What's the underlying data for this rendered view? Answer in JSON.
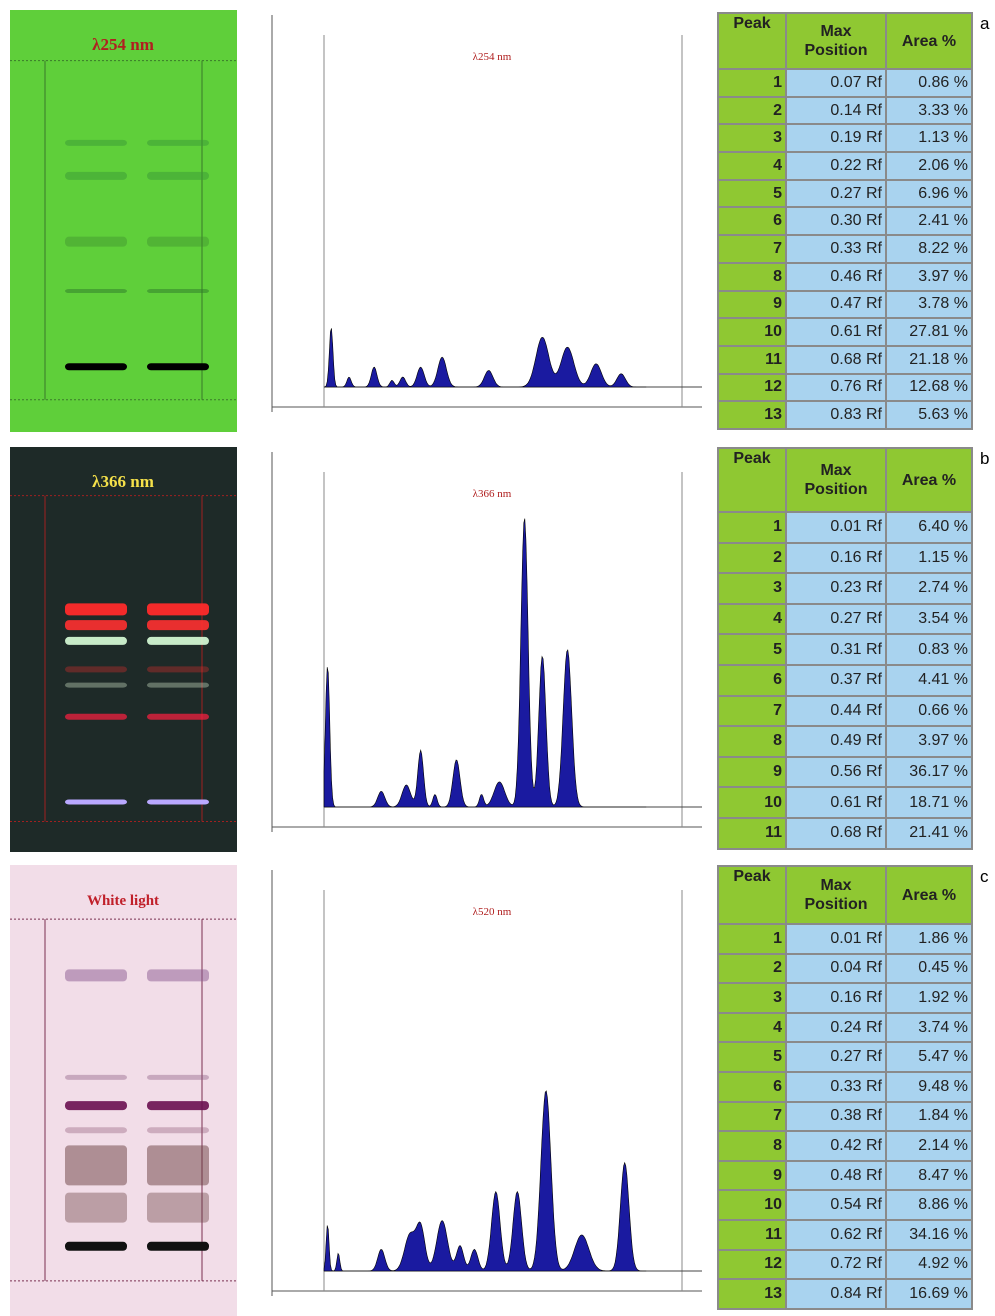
{
  "panels": [
    {
      "label": "a",
      "plate_title": "λ254 nm",
      "chart_title": "λ254 nm",
      "table": {
        "header": [
          "Peak",
          "Max Position",
          "Area %"
        ],
        "rows": [
          [
            "1",
            "0.07 Rf",
            "0.86 %"
          ],
          [
            "2",
            "0.14 Rf",
            "3.33 %"
          ],
          [
            "3",
            "0.19 Rf",
            "1.13 %"
          ],
          [
            "4",
            "0.22 Rf",
            "2.06 %"
          ],
          [
            "5",
            "0.27 Rf",
            "6.96 %"
          ],
          [
            "6",
            "0.30 Rf",
            "2.41 %"
          ],
          [
            "7",
            "0.33 Rf",
            "8.22 %"
          ],
          [
            "8",
            "0.46 Rf",
            "3.97 %"
          ],
          [
            "9",
            "0.47 Rf",
            "3.78 %"
          ],
          [
            "10",
            "0.61 Rf",
            "27.81 %"
          ],
          [
            "11",
            "0.68 Rf",
            "21.18 %"
          ],
          [
            "12",
            "0.76 Rf",
            "12.68 %"
          ],
          [
            "13",
            "0.83 Rf",
            "5.63 %"
          ]
        ]
      }
    },
    {
      "label": "b",
      "plate_title": "λ366 nm",
      "chart_title": "λ366 nm",
      "table": {
        "header": [
          "Peak",
          "Max Position",
          "Area %"
        ],
        "rows": [
          [
            "1",
            "0.01 Rf",
            "6.40 %"
          ],
          [
            "2",
            "0.16 Rf",
            "1.15 %"
          ],
          [
            "3",
            "0.23 Rf",
            "2.74 %"
          ],
          [
            "4",
            "0.27 Rf",
            "3.54 %"
          ],
          [
            "5",
            "0.31 Rf",
            "0.83 %"
          ],
          [
            "6",
            "0.37 Rf",
            "4.41 %"
          ],
          [
            "7",
            "0.44 Rf",
            "0.66 %"
          ],
          [
            "8",
            "0.49 Rf",
            "3.97 %"
          ],
          [
            "9",
            "0.56 Rf",
            "36.17 %"
          ],
          [
            "10",
            "0.61 Rf",
            "18.71 %"
          ],
          [
            "11",
            "0.68 Rf",
            "21.41 %"
          ]
        ]
      }
    },
    {
      "label": "c",
      "plate_title": "White light",
      "chart_title": "λ520 nm",
      "table": {
        "header": [
          "Peak",
          "Max Position",
          "Area %"
        ],
        "rows": [
          [
            "1",
            "0.01 Rf",
            "1.86 %"
          ],
          [
            "2",
            "0.04 Rf",
            "0.45 %"
          ],
          [
            "3",
            "0.16 Rf",
            "1.92 %"
          ],
          [
            "4",
            "0.24 Rf",
            "3.74 %"
          ],
          [
            "5",
            "0.27 Rf",
            "5.47 %"
          ],
          [
            "6",
            "0.33 Rf",
            "9.48 %"
          ],
          [
            "7",
            "0.38 Rf",
            "1.84 %"
          ],
          [
            "8",
            "0.42 Rf",
            "2.14 %"
          ],
          [
            "9",
            "0.48 Rf",
            "8.47 %"
          ],
          [
            "10",
            "0.54 Rf",
            "8.86 %"
          ],
          [
            "11",
            "0.62 Rf",
            "34.16 %"
          ],
          [
            "12",
            "0.72 Rf",
            "4.92 %"
          ],
          [
            "13",
            "0.84 Rf",
            "16.69 %"
          ]
        ]
      }
    }
  ]
}
